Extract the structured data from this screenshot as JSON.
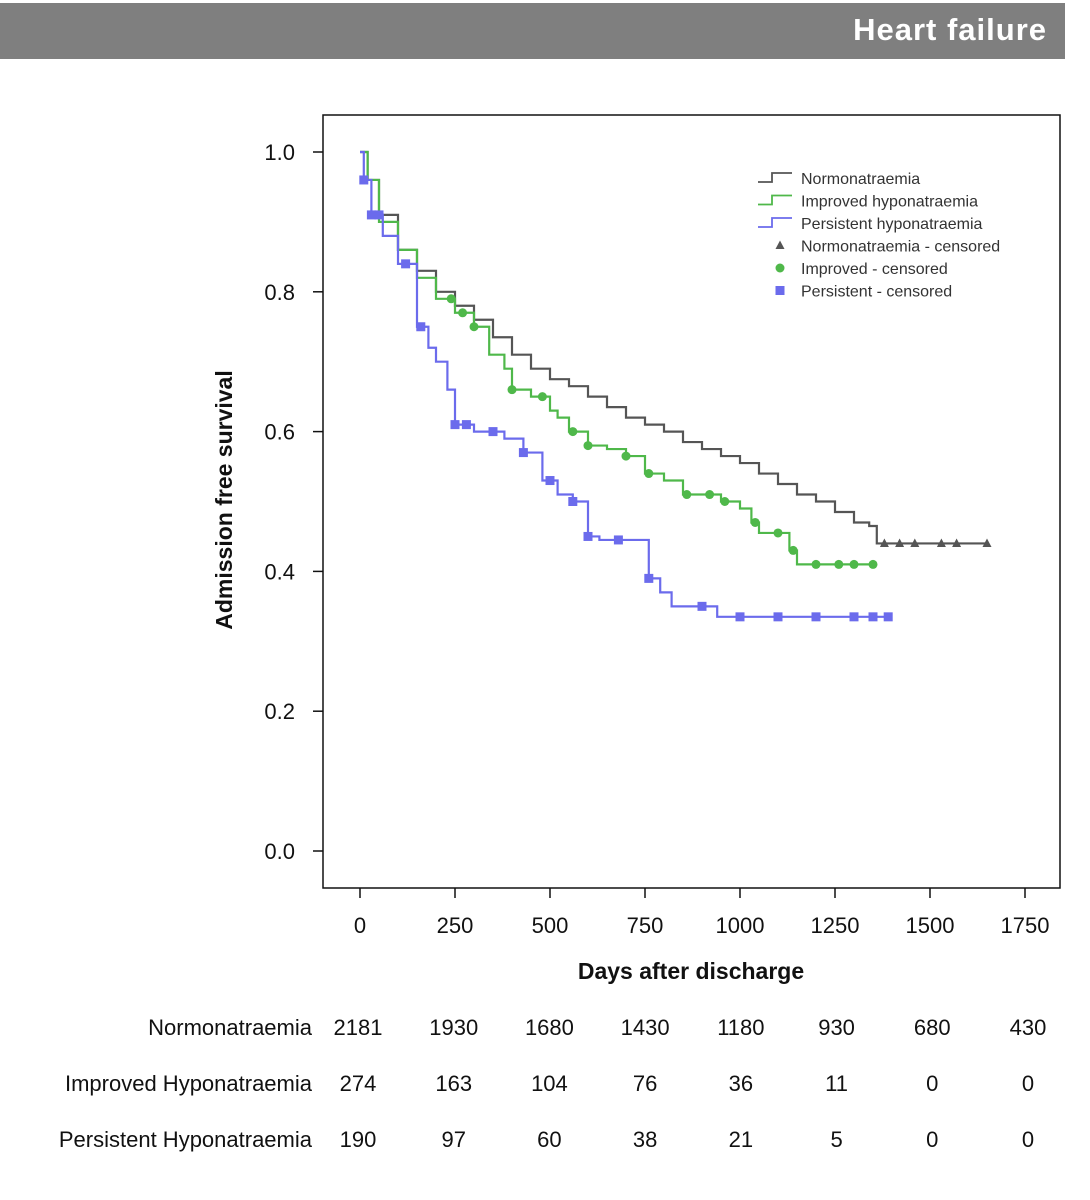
{
  "banner": {
    "title": "Heart failure"
  },
  "chart_data": {
    "type": "line",
    "subtype": "kaplan-meier step curves",
    "title": "",
    "xlabel": "Days after discharge",
    "ylabel": "Admission free survival",
    "xlim": [
      -80,
      1750
    ],
    "ylim": [
      -0.05,
      1.05
    ],
    "x_ticks": [
      0,
      250,
      500,
      750,
      1000,
      1250,
      1500,
      1750
    ],
    "y_ticks": [
      "0.0",
      "0.2",
      "0.4",
      "0.6",
      "0.8",
      "1.0"
    ],
    "grid": false,
    "legend_position": "top-right",
    "series": [
      {
        "name": "Normonatraemia",
        "color": "#555555",
        "marker": "triangle",
        "censored_label": "Normonatraemia - censored",
        "x": [
          0,
          20,
          50,
          100,
          150,
          200,
          250,
          300,
          350,
          400,
          450,
          500,
          550,
          600,
          650,
          700,
          750,
          800,
          850,
          900,
          950,
          1000,
          1050,
          1100,
          1150,
          1200,
          1250,
          1300,
          1340,
          1360,
          1650
        ],
        "y": [
          1.0,
          0.96,
          0.91,
          0.86,
          0.83,
          0.8,
          0.78,
          0.76,
          0.735,
          0.71,
          0.69,
          0.675,
          0.665,
          0.65,
          0.635,
          0.62,
          0.61,
          0.6,
          0.585,
          0.575,
          0.565,
          0.555,
          0.54,
          0.525,
          0.51,
          0.5,
          0.485,
          0.47,
          0.465,
          0.44,
          0.44
        ],
        "censored_x": [
          1380,
          1420,
          1460,
          1530,
          1570,
          1650
        ]
      },
      {
        "name": "Improved hyponatraemia",
        "color": "#4fb84a",
        "marker": "circle",
        "censored_label": "Improved - censored",
        "x": [
          0,
          20,
          50,
          100,
          150,
          200,
          250,
          300,
          340,
          380,
          400,
          450,
          500,
          520,
          550,
          600,
          650,
          700,
          750,
          800,
          850,
          900,
          950,
          1000,
          1030,
          1050,
          1100,
          1130,
          1150,
          1350
        ],
        "y": [
          1.0,
          0.96,
          0.9,
          0.86,
          0.82,
          0.79,
          0.77,
          0.75,
          0.71,
          0.69,
          0.66,
          0.65,
          0.63,
          0.62,
          0.6,
          0.58,
          0.575,
          0.565,
          0.54,
          0.53,
          0.51,
          0.51,
          0.5,
          0.49,
          0.47,
          0.455,
          0.455,
          0.43,
          0.41,
          0.41
        ],
        "censored_x": [
          240,
          270,
          300,
          400,
          480,
          560,
          600,
          700,
          760,
          860,
          920,
          960,
          1040,
          1100,
          1140,
          1200,
          1260,
          1300,
          1350
        ]
      },
      {
        "name": "Persistent hyponatraemia",
        "color": "#6b6bec",
        "marker": "square",
        "censored_label": "Persistent - censored",
        "x": [
          0,
          10,
          30,
          60,
          100,
          150,
          180,
          200,
          230,
          250,
          300,
          380,
          430,
          480,
          520,
          560,
          600,
          630,
          700,
          760,
          790,
          820,
          900,
          940,
          1390
        ],
        "y": [
          1.0,
          0.96,
          0.91,
          0.88,
          0.84,
          0.75,
          0.72,
          0.7,
          0.66,
          0.61,
          0.6,
          0.59,
          0.57,
          0.53,
          0.51,
          0.5,
          0.45,
          0.445,
          0.445,
          0.39,
          0.37,
          0.35,
          0.35,
          0.335,
          0.335
        ],
        "censored_x": [
          10,
          30,
          50,
          120,
          160,
          250,
          280,
          350,
          430,
          500,
          560,
          600,
          680,
          760,
          900,
          1000,
          1100,
          1200,
          1300,
          1350,
          1390
        ]
      }
    ],
    "risk_table": {
      "x": [
        0,
        250,
        500,
        750,
        1000,
        1250,
        1500,
        1750
      ],
      "rows": [
        {
          "name": "Normonatraemia",
          "values": [
            "2181",
            "1930",
            "1680",
            "1430",
            "1180",
            "930",
            "680",
            "430"
          ]
        },
        {
          "name": "Improved Hyponatraemia",
          "values": [
            "274",
            "163",
            "104",
            "76",
            "36",
            "11",
            "0",
            "0"
          ]
        },
        {
          "name": "Persistent Hyponatraemia",
          "values": [
            "190",
            "97",
            "60",
            "38",
            "21",
            "5",
            "0",
            "0"
          ]
        }
      ]
    }
  }
}
